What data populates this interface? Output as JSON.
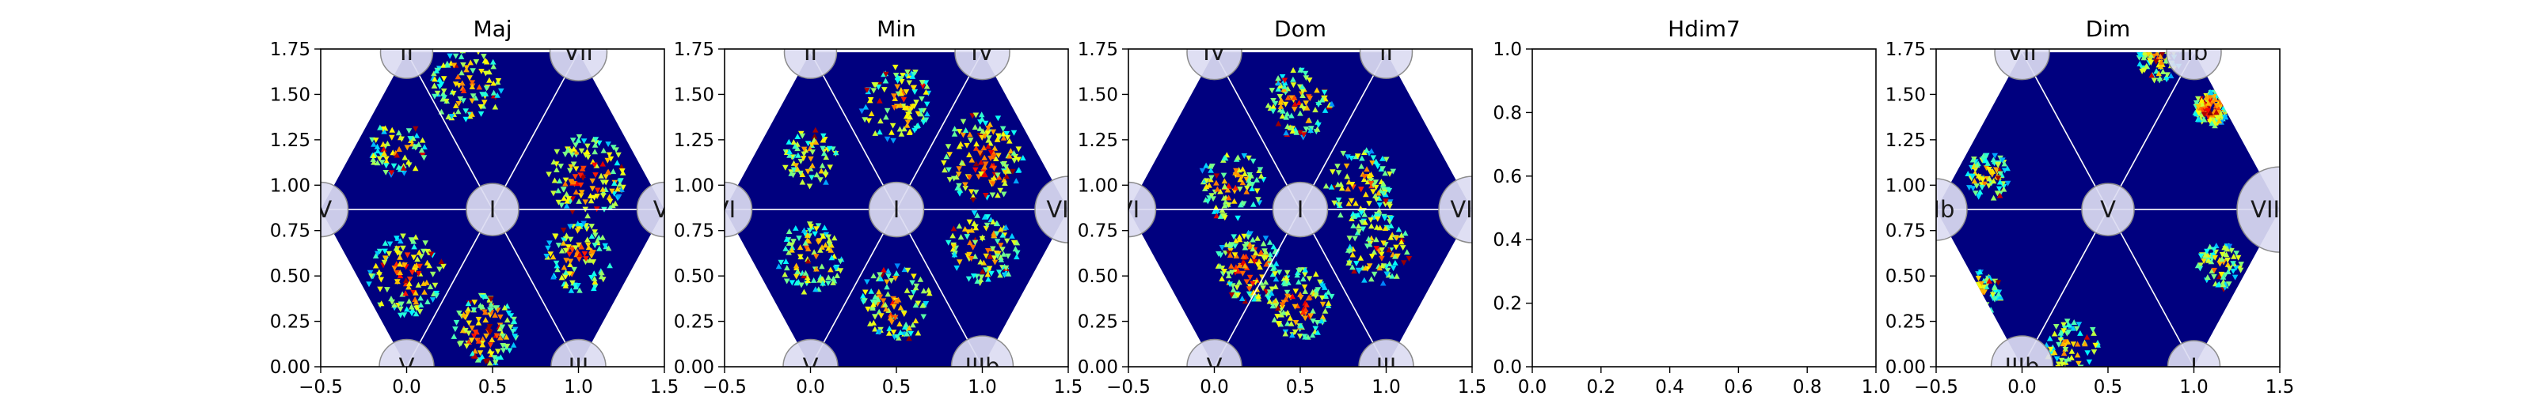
{
  "colors": {
    "background": "#00007f",
    "cell_low": "#0000c8",
    "grid_line": "#ffffff",
    "node_fill": "#dcdcf2",
    "node_stroke": "#8c8c8c",
    "colormap": "jet"
  },
  "chart_data": [
    {
      "type": "heatmap",
      "title": "Maj",
      "xlim": [
        -0.5,
        1.5
      ],
      "ylim": [
        0,
        1.75
      ],
      "x_ticks": [
        "−0.5",
        "0.0",
        "0.5",
        "1.0",
        "1.5"
      ],
      "y_ticks": [
        "0.00",
        "0.25",
        "0.50",
        "0.75",
        "1.00",
        "1.25",
        "1.50",
        "1.75"
      ],
      "nodes": [
        {
          "label": "II",
          "x": 0.0,
          "y": 1.732,
          "weight": 0.3
        },
        {
          "label": "VII",
          "x": 1.0,
          "y": 1.732,
          "weight": 0.4
        },
        {
          "label": "IV",
          "x": -0.5,
          "y": 0.866,
          "weight": 0.35
        },
        {
          "label": "I",
          "x": 0.5,
          "y": 0.866,
          "weight": 0.3
        },
        {
          "label": "VI",
          "x": 1.5,
          "y": 0.866,
          "weight": 0.35
        },
        {
          "label": "V",
          "x": 0.0,
          "y": 0.0,
          "weight": 0.35
        },
        {
          "label": "III",
          "x": 1.0,
          "y": 0.0,
          "weight": 0.35
        }
      ],
      "hot_regions": [
        {
          "x": 0.35,
          "y": 1.55,
          "spread": 0.13,
          "density": 0.6,
          "peak": 0.55
        },
        {
          "x": 1.05,
          "y": 1.05,
          "spread": 0.14,
          "density": 0.75,
          "peak": 0.8
        },
        {
          "x": 1.0,
          "y": 0.6,
          "spread": 0.12,
          "density": 0.6,
          "peak": 0.6
        },
        {
          "x": 0.0,
          "y": 0.5,
          "spread": 0.14,
          "density": 0.7,
          "peak": 0.8
        },
        {
          "x": 0.45,
          "y": 0.2,
          "spread": 0.12,
          "density": 0.7,
          "peak": 0.85
        },
        {
          "x": -0.05,
          "y": 1.2,
          "spread": 0.1,
          "density": 0.4,
          "peak": 0.45
        }
      ]
    },
    {
      "type": "heatmap",
      "title": "Min",
      "xlim": [
        -0.5,
        1.5
      ],
      "ylim": [
        0,
        1.75
      ],
      "x_ticks": [
        "−0.5",
        "0.0",
        "0.5",
        "1.0",
        "1.5"
      ],
      "y_ticks": [
        "0.00",
        "0.25",
        "0.50",
        "0.75",
        "1.00",
        "1.25",
        "1.50",
        "1.75"
      ],
      "nodes": [
        {
          "label": "II",
          "x": 0.0,
          "y": 1.732,
          "weight": 0.3
        },
        {
          "label": "IV",
          "x": 1.0,
          "y": 1.732,
          "weight": 0.35
        },
        {
          "label": "VI",
          "x": -0.5,
          "y": 0.866,
          "weight": 0.35
        },
        {
          "label": "I",
          "x": 0.5,
          "y": 0.866,
          "weight": 0.35
        },
        {
          "label": "VIIb",
          "x": 1.5,
          "y": 0.866,
          "weight": 0.6
        },
        {
          "label": "V",
          "x": 0.0,
          "y": 0.0,
          "weight": 0.35
        },
        {
          "label": "IIIb",
          "x": 1.0,
          "y": 0.0,
          "weight": 0.5
        }
      ],
      "hot_regions": [
        {
          "x": 0.5,
          "y": 1.45,
          "spread": 0.13,
          "density": 0.6,
          "peak": 0.55
        },
        {
          "x": 1.0,
          "y": 1.15,
          "spread": 0.15,
          "density": 0.8,
          "peak": 0.85
        },
        {
          "x": 0.0,
          "y": 0.6,
          "spread": 0.12,
          "density": 0.6,
          "peak": 0.55
        },
        {
          "x": 0.5,
          "y": 0.35,
          "spread": 0.13,
          "density": 0.6,
          "peak": 0.6
        },
        {
          "x": 1.0,
          "y": 0.65,
          "spread": 0.13,
          "density": 0.6,
          "peak": 0.55
        },
        {
          "x": 0.0,
          "y": 1.15,
          "spread": 0.1,
          "density": 0.4,
          "peak": 0.45
        }
      ]
    },
    {
      "type": "heatmap",
      "title": "Dom",
      "xlim": [
        -0.5,
        1.5
      ],
      "ylim": [
        0,
        1.75
      ],
      "x_ticks": [
        "−0.5",
        "0.0",
        "0.5",
        "1.0",
        "1.5"
      ],
      "y_ticks": [
        "0.00",
        "0.25",
        "0.50",
        "0.75",
        "1.00",
        "1.25",
        "1.50",
        "1.75"
      ],
      "nodes": [
        {
          "label": "IV",
          "x": 0.0,
          "y": 1.732,
          "weight": 0.35
        },
        {
          "label": "II",
          "x": 1.0,
          "y": 1.732,
          "weight": 0.3
        },
        {
          "label": "VI",
          "x": -0.5,
          "y": 0.866,
          "weight": 0.35
        },
        {
          "label": "I",
          "x": 0.5,
          "y": 0.866,
          "weight": 0.35
        },
        {
          "label": "VIIb",
          "x": 1.5,
          "y": 0.866,
          "weight": 0.6
        },
        {
          "label": "V",
          "x": 0.0,
          "y": 0.0,
          "weight": 0.35
        },
        {
          "label": "III",
          "x": 1.0,
          "y": 0.0,
          "weight": 0.35
        }
      ],
      "hot_regions": [
        {
          "x": 0.5,
          "y": 1.45,
          "spread": 0.12,
          "density": 0.6,
          "peak": 0.55
        },
        {
          "x": 0.1,
          "y": 1.0,
          "spread": 0.12,
          "density": 0.55,
          "peak": 0.55
        },
        {
          "x": 0.85,
          "y": 1.0,
          "spread": 0.13,
          "density": 0.6,
          "peak": 0.55
        },
        {
          "x": 0.2,
          "y": 0.55,
          "spread": 0.12,
          "density": 0.75,
          "peak": 0.85
        },
        {
          "x": 0.5,
          "y": 0.35,
          "spread": 0.12,
          "density": 0.7,
          "peak": 0.7
        },
        {
          "x": 0.95,
          "y": 0.65,
          "spread": 0.12,
          "density": 0.55,
          "peak": 0.5
        }
      ]
    },
    {
      "type": "heatmap",
      "title": "Hdim7",
      "empty": true,
      "xlim": [
        0,
        1
      ],
      "ylim": [
        0,
        1
      ],
      "x_ticks": [
        "0.0",
        "0.2",
        "0.4",
        "0.6",
        "0.8",
        "1.0"
      ],
      "y_ticks": [
        "0.0",
        "0.2",
        "0.4",
        "0.6",
        "0.8",
        "1.0"
      ]
    },
    {
      "type": "heatmap",
      "title": "Dim",
      "xlim": [
        -0.5,
        1.5
      ],
      "ylim": [
        0,
        1.75
      ],
      "x_ticks": [
        "−0.5",
        "0.0",
        "0.5",
        "1.0",
        "1.5"
      ],
      "y_ticks": [
        "0.00",
        "0.25",
        "0.50",
        "0.75",
        "1.00",
        "1.25",
        "1.50",
        "1.75"
      ],
      "nodes": [
        {
          "label": "VII",
          "x": 0.0,
          "y": 1.732,
          "weight": 0.35
        },
        {
          "label": "IIb",
          "x": 1.0,
          "y": 1.732,
          "weight": 0.35
        },
        {
          "label": "VIb",
          "x": -0.5,
          "y": 0.866,
          "weight": 0.5
        },
        {
          "label": "V",
          "x": 0.5,
          "y": 0.866,
          "weight": 0.3
        },
        {
          "label": "VIIbb",
          "x": 1.5,
          "y": 0.866,
          "weight": 1.0
        },
        {
          "label": "IIIb",
          "x": 0.0,
          "y": 0.0,
          "weight": 0.5
        },
        {
          "label": "I",
          "x": 1.0,
          "y": 0.0,
          "weight": 0.3
        }
      ],
      "hot_regions": [
        {
          "x": 0.8,
          "y": 1.7,
          "spread": 0.08,
          "density": 0.5,
          "peak": 0.45
        },
        {
          "x": 1.1,
          "y": 1.42,
          "spread": 0.06,
          "density": 0.85,
          "peak": 1.0
        },
        {
          "x": -0.2,
          "y": 1.05,
          "spread": 0.08,
          "density": 0.5,
          "peak": 0.45
        },
        {
          "x": -0.25,
          "y": 0.4,
          "spread": 0.08,
          "density": 0.45,
          "peak": 0.45
        },
        {
          "x": 1.15,
          "y": 0.55,
          "spread": 0.08,
          "density": 0.45,
          "peak": 0.45
        },
        {
          "x": 0.3,
          "y": 0.1,
          "spread": 0.1,
          "density": 0.4,
          "peak": 0.4
        }
      ]
    }
  ]
}
